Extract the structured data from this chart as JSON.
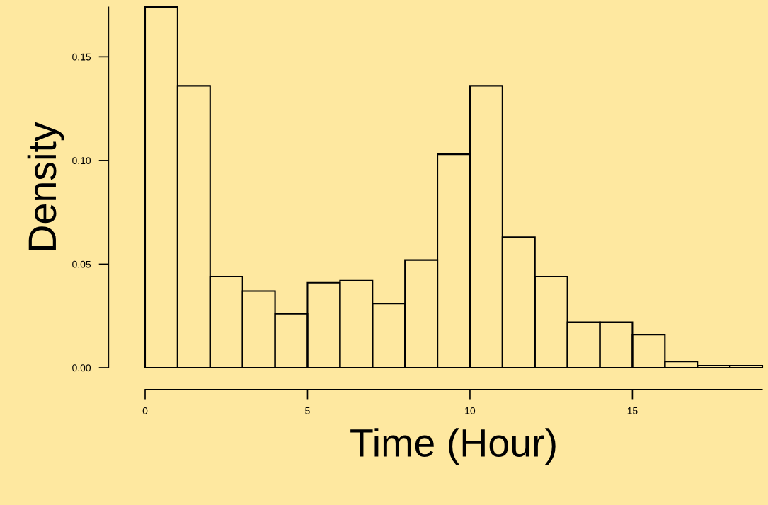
{
  "chart_data": {
    "type": "histogram",
    "xlabel": "Time (Hour)",
    "ylabel": "Density",
    "bins": [
      0,
      1,
      2,
      3,
      4,
      5,
      6,
      7,
      8,
      9,
      10,
      11,
      12,
      13,
      14,
      15,
      16,
      17,
      18,
      19
    ],
    "values": [
      0.174,
      0.136,
      0.044,
      0.037,
      0.026,
      0.041,
      0.042,
      0.031,
      0.052,
      0.103,
      0.136,
      0.063,
      0.044,
      0.022,
      0.022,
      0.016,
      0.003,
      0.001,
      0.001
    ],
    "xlim": [
      0,
      19
    ],
    "ylim": [
      0,
      0.174
    ],
    "xticks": [
      0,
      5,
      10,
      15
    ],
    "yticks": [
      {
        "value": 0,
        "label": "0.00"
      },
      {
        "value": 0.05,
        "label": "0.05"
      },
      {
        "value": 0.1,
        "label": "0.10"
      },
      {
        "value": 0.15,
        "label": "0.15"
      }
    ],
    "grid": false
  }
}
